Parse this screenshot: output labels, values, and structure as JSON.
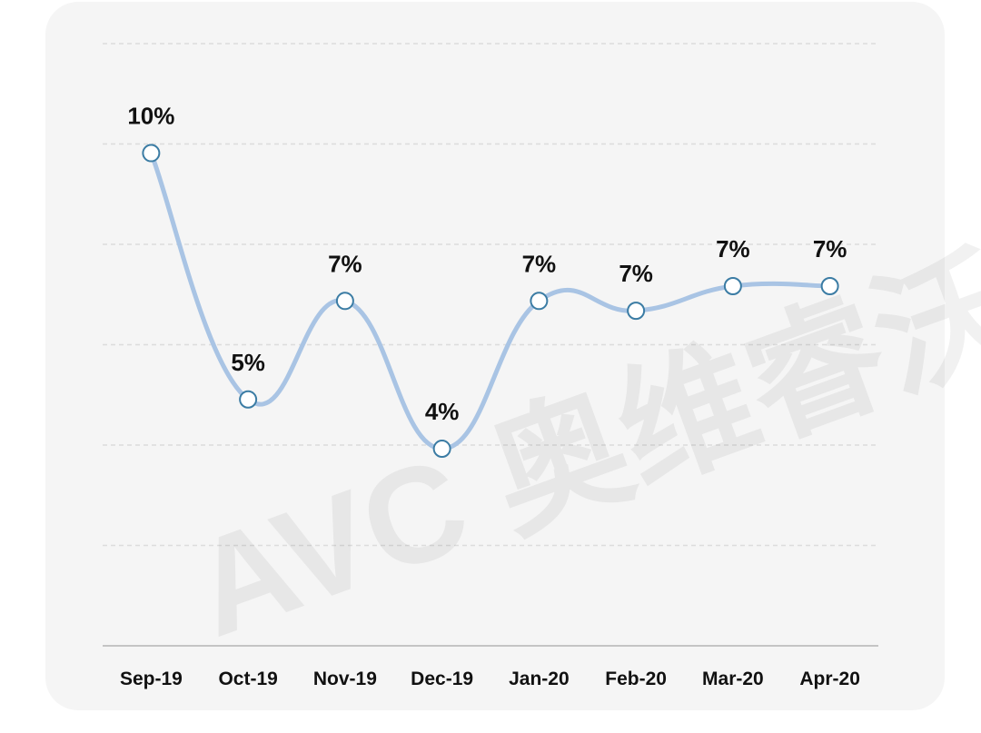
{
  "chart_data": {
    "type": "line",
    "categories": [
      "Sep-19",
      "Oct-19",
      "Nov-19",
      "Dec-19",
      "Jan-20",
      "Feb-20",
      "Mar-20",
      "Apr-20"
    ],
    "series": [
      {
        "values": [
          10,
          5,
          7,
          4,
          7,
          6.8,
          7.3,
          7.3
        ],
        "data_labels": [
          "10%",
          "5%",
          "7%",
          "4%",
          "7%",
          "7%",
          "7%",
          "7%"
        ]
      }
    ],
    "ylim": [
      0,
      11
    ],
    "grid": true,
    "legend": "none",
    "line_color": "#a9c4e4",
    "marker_stroke_color": "#3b7ca4"
  },
  "watermark": {
    "text": "AVC 奥维睿沃"
  }
}
